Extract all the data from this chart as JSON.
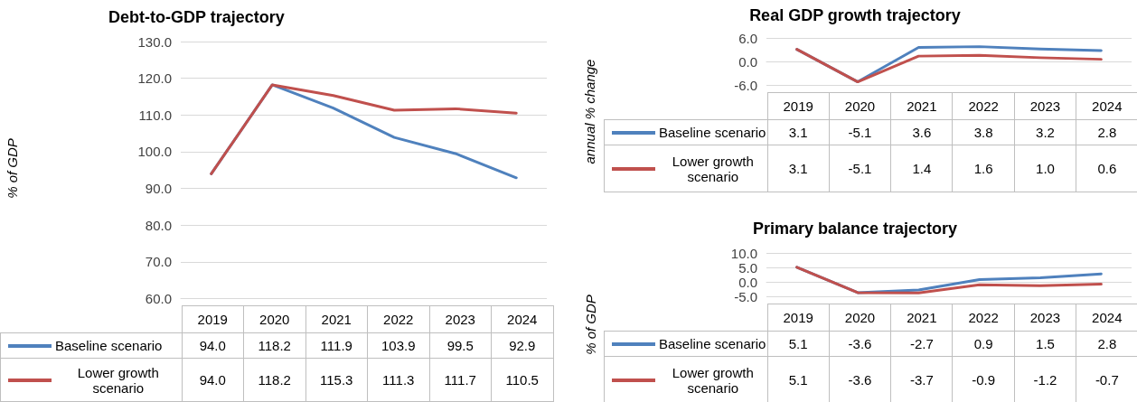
{
  "chart_data": [
    {
      "type": "line",
      "title": "Debt-to-GDP trajectory",
      "ylabel": "% of GDP",
      "categories": [
        "2019",
        "2020",
        "2021",
        "2022",
        "2023",
        "2024"
      ],
      "series": [
        {
          "name": "Baseline scenario",
          "color": "#4f81bd",
          "values": [
            94.0,
            118.2,
            111.9,
            103.9,
            99.5,
            92.9
          ],
          "value_labels": [
            "94.0",
            "118.2",
            "111.9",
            "103.9",
            "99.5",
            "92.9"
          ]
        },
        {
          "name": "Lower growth scenario",
          "color": "#c0504d",
          "values": [
            94.0,
            118.2,
            115.3,
            111.3,
            111.7,
            110.5
          ],
          "value_labels": [
            "94.0",
            "118.2",
            "115.3",
            "111.3",
            "111.7",
            "110.5"
          ]
        }
      ],
      "ylim": [
        60,
        130
      ],
      "yticks": [
        {
          "value": 60,
          "label": "60.0"
        },
        {
          "value": 70,
          "label": "70.0"
        },
        {
          "value": 80,
          "label": "80.0"
        },
        {
          "value": 90,
          "label": "90.0"
        },
        {
          "value": 100,
          "label": "100.0"
        },
        {
          "value": 110,
          "label": "110.0"
        },
        {
          "value": 120,
          "label": "120.0"
        },
        {
          "value": 130,
          "label": "130.0"
        }
      ],
      "grid": "y",
      "legend": "bottom left",
      "marker": "none",
      "line_style": "solid"
    },
    {
      "type": "line",
      "title": "Real GDP growth trajectory",
      "ylabel": "annual % change",
      "categories": [
        "2019",
        "2020",
        "2021",
        "2022",
        "2023",
        "2024"
      ],
      "series": [
        {
          "name": "Baseline scenario",
          "color": "#4f81bd",
          "values": [
            3.1,
            -5.1,
            3.6,
            3.8,
            3.2,
            2.8
          ],
          "value_labels": [
            "3.1",
            "-5.1",
            "3.6",
            "3.8",
            "3.2",
            "2.8"
          ]
        },
        {
          "name": "Lower growth scenario",
          "color": "#c0504d",
          "values": [
            3.1,
            -5.1,
            1.4,
            1.6,
            1.0,
            0.6
          ],
          "value_labels": [
            "3.1",
            "-5.1",
            "1.4",
            "1.6",
            "1.0",
            "0.6"
          ]
        }
      ],
      "ylim": [
        -6,
        6
      ],
      "yticks": [
        {
          "value": -6,
          "label": "-6.0"
        },
        {
          "value": 0,
          "label": "0.0"
        },
        {
          "value": 6,
          "label": "6.0"
        }
      ],
      "grid": "y",
      "legend": "bottom left",
      "marker": "none",
      "line_style": "solid"
    },
    {
      "type": "line",
      "title": "Primary balance  trajectory",
      "ylabel": "% of GDP",
      "categories": [
        "2019",
        "2020",
        "2021",
        "2022",
        "2023",
        "2024"
      ],
      "series": [
        {
          "name": "Baseline scenario",
          "color": "#4f81bd",
          "values": [
            5.1,
            -3.6,
            -2.7,
            0.9,
            1.5,
            2.8
          ],
          "value_labels": [
            "5.1",
            "-3.6",
            "-2.7",
            "0.9",
            "1.5",
            "2.8"
          ]
        },
        {
          "name": "Lower growth scenario",
          "color": "#c0504d",
          "values": [
            5.1,
            -3.6,
            -3.7,
            -0.9,
            -1.2,
            -0.7
          ],
          "value_labels": [
            "5.1",
            "-3.6",
            "-3.7",
            "-0.9",
            "-1.2",
            "-0.7"
          ]
        }
      ],
      "ylim": [
        -5,
        10
      ],
      "yticks": [
        {
          "value": -5,
          "label": "-5.0"
        },
        {
          "value": 0,
          "label": "0.0"
        },
        {
          "value": 5,
          "label": "5.0"
        },
        {
          "value": 10,
          "label": "10.0"
        }
      ],
      "grid": "y",
      "legend": "bottom left",
      "marker": "none",
      "line_style": "solid"
    }
  ]
}
